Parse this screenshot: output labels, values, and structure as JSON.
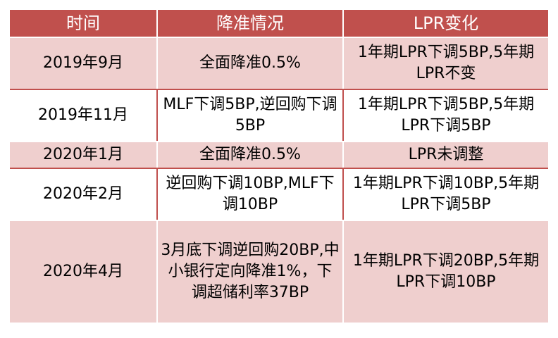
{
  "table": {
    "headers": [
      "时间",
      "降准情况",
      "LPR变化"
    ],
    "rows": [
      {
        "time": "2019年9月",
        "rrr": "全面降准0.5%",
        "lpr": "1年期LPR下调5BP,5年期LPR不变",
        "height": 72
      },
      {
        "time": "2019年11月",
        "rrr": "MLF下调5BP,逆回购下调5BP",
        "lpr": "1年期LPR下调5BP,5年期LPR下调5BP",
        "height": 72
      },
      {
        "time": "2020年1月",
        "rrr": "全面降准0.5%",
        "lpr": "LPR未调整",
        "height": 36
      },
      {
        "time": "2020年2月",
        "rrr": "逆回购下调10BP,MLF下调10BP",
        "lpr": "1年期LPR下调10BP,5年期LPR下调5BP",
        "height": 72
      },
      {
        "time": "2020年4月",
        "rrr": "3月底下调逆回购20BP,中小银行定向降准1%，下调超储利率37BP",
        "lpr": "1年期LPR下调20BP,5年期LPR下调10BP",
        "height": 144
      }
    ]
  },
  "colors": {
    "header_bg": "#c0504d",
    "odd_row_bg": "#efcfce",
    "even_row_bg": "#ffffff"
  }
}
